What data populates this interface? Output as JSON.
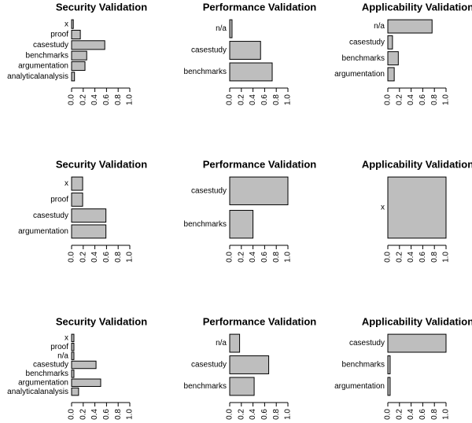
{
  "chart_data": [
    {
      "type": "barh",
      "title": "Security Validation",
      "categories": [
        "x",
        "proof",
        "casestudy",
        "benchmarks",
        "argumentation",
        "analyticalanalysis"
      ],
      "values": [
        0.03,
        0.15,
        0.57,
        0.26,
        0.23,
        0.05
      ],
      "color": "#bebebe",
      "xlim": [
        0,
        1
      ],
      "xticks": [
        {
          "value": 0,
          "label": "0.0"
        },
        0.2,
        0.4,
        0.6,
        0.8,
        {
          "value": 1,
          "label": "1.0"
        }
      ]
    },
    {
      "type": "barh",
      "title": "Performance Validation",
      "categories": [
        "n/a",
        "casestudy",
        "benchmarks"
      ],
      "values": [
        0.04,
        0.53,
        0.73
      ],
      "color": "#bebebe",
      "xlim": [
        0,
        1
      ],
      "xticks": [
        {
          "value": 0,
          "label": "0.0"
        },
        0.2,
        0.4,
        0.6,
        0.8,
        {
          "value": 1,
          "label": "1.0"
        }
      ]
    },
    {
      "type": "barh",
      "title": "Applicability Validation",
      "categories": [
        "n/a",
        "casestudy",
        "benchmarks",
        "argumentation"
      ],
      "values": [
        0.76,
        0.08,
        0.18,
        0.11
      ],
      "color": "#bebebe",
      "xlim": [
        0,
        1
      ],
      "xticks": [
        {
          "value": 0,
          "label": "0.0"
        },
        0.2,
        0.4,
        0.6,
        0.8,
        {
          "value": 1,
          "label": "1.0"
        }
      ]
    },
    {
      "type": "barh",
      "title": "Security Validation",
      "categories": [
        "x",
        "proof",
        "casestudy",
        "argumentation"
      ],
      "values": [
        0.19,
        0.19,
        0.59,
        0.59
      ],
      "color": "#bebebe",
      "xlim": [
        0,
        1
      ],
      "xticks": [
        {
          "value": 0,
          "label": "0.0"
        },
        0.2,
        0.4,
        0.6,
        0.8,
        {
          "value": 1,
          "label": "1.0"
        }
      ]
    },
    {
      "type": "barh",
      "title": "Performance Validation",
      "categories": [
        "casestudy",
        "benchmarks"
      ],
      "values": [
        1.0,
        0.4
      ],
      "color": "#bebebe",
      "xlim": [
        0,
        1
      ],
      "xticks": [
        {
          "value": 0,
          "label": "0.0"
        },
        0.2,
        0.4,
        0.6,
        0.8,
        {
          "value": 1,
          "label": "1.0"
        }
      ]
    },
    {
      "type": "barh",
      "title": "Applicability Validation",
      "categories": [
        "x"
      ],
      "values": [
        1.0
      ],
      "color": "#bebebe",
      "xlim": [
        0,
        1
      ],
      "xticks": [
        {
          "value": 0,
          "label": "0.0"
        },
        0.2,
        0.4,
        0.6,
        0.8,
        {
          "value": 1,
          "label": "1.0"
        }
      ]
    },
    {
      "type": "barh",
      "title": "Security Validation",
      "categories": [
        "x",
        "proof",
        "n/a",
        "casestudy",
        "benchmarks",
        "argumentation",
        "analyticalanalysis"
      ],
      "values": [
        0.04,
        0.04,
        0.04,
        0.42,
        0.04,
        0.5,
        0.12
      ],
      "color": "#bebebe",
      "xlim": [
        0,
        1
      ],
      "xticks": [
        {
          "value": 0,
          "label": "0.0"
        },
        0.2,
        0.4,
        0.6,
        0.8,
        {
          "value": 1,
          "label": "1.0"
        }
      ]
    },
    {
      "type": "barh",
      "title": "Performance Validation",
      "categories": [
        "n/a",
        "casestudy",
        "benchmarks"
      ],
      "values": [
        0.17,
        0.67,
        0.42
      ],
      "color": "#bebebe",
      "xlim": [
        0,
        1
      ],
      "xticks": [
        {
          "value": 0,
          "label": "0.0"
        },
        0.2,
        0.4,
        0.6,
        0.8,
        {
          "value": 1,
          "label": "1.0"
        }
      ]
    },
    {
      "type": "barh",
      "title": "Applicability Validation",
      "categories": [
        "casestudy",
        "benchmarks",
        "argumentation"
      ],
      "values": [
        1.0,
        0.04,
        0.04
      ],
      "color": "#bebebe",
      "xlim": [
        0,
        1
      ],
      "xticks": [
        {
          "value": 0,
          "label": "0.0"
        },
        0.2,
        0.4,
        0.6,
        0.8,
        {
          "value": 1,
          "label": "1.0"
        }
      ]
    }
  ]
}
